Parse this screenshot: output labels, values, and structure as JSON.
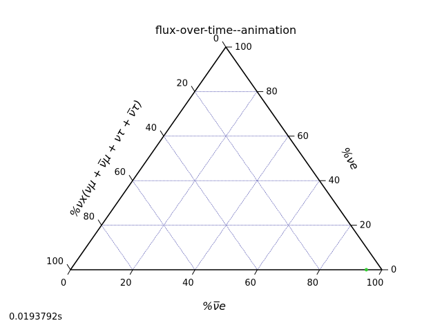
{
  "chart_data": {
    "type": "scatter",
    "projection": "ternary",
    "title": "flux-over-time--animation",
    "axes": {
      "bottom": {
        "label": "%ν̅e",
        "ticks": [
          "0",
          "20",
          "40",
          "60",
          "80",
          "100"
        ]
      },
      "right": {
        "label": "%νe",
        "ticks": [
          "0",
          "20",
          "40",
          "60",
          "80",
          "100"
        ]
      },
      "left": {
        "label": "%νx(νμ + ν̅μ + ντ + ν̅τ)",
        "ticks": [
          "0",
          "20",
          "40",
          "60",
          "80",
          "100"
        ]
      }
    },
    "range": [
      0,
      100
    ],
    "grid": true,
    "grid_color": "#00008b",
    "points": [
      {
        "nue_bar": 95,
        "nue": 0,
        "nux": 5,
        "color": "#33cc33"
      }
    ]
  },
  "footer": {
    "time_label": "0.0193792s"
  }
}
